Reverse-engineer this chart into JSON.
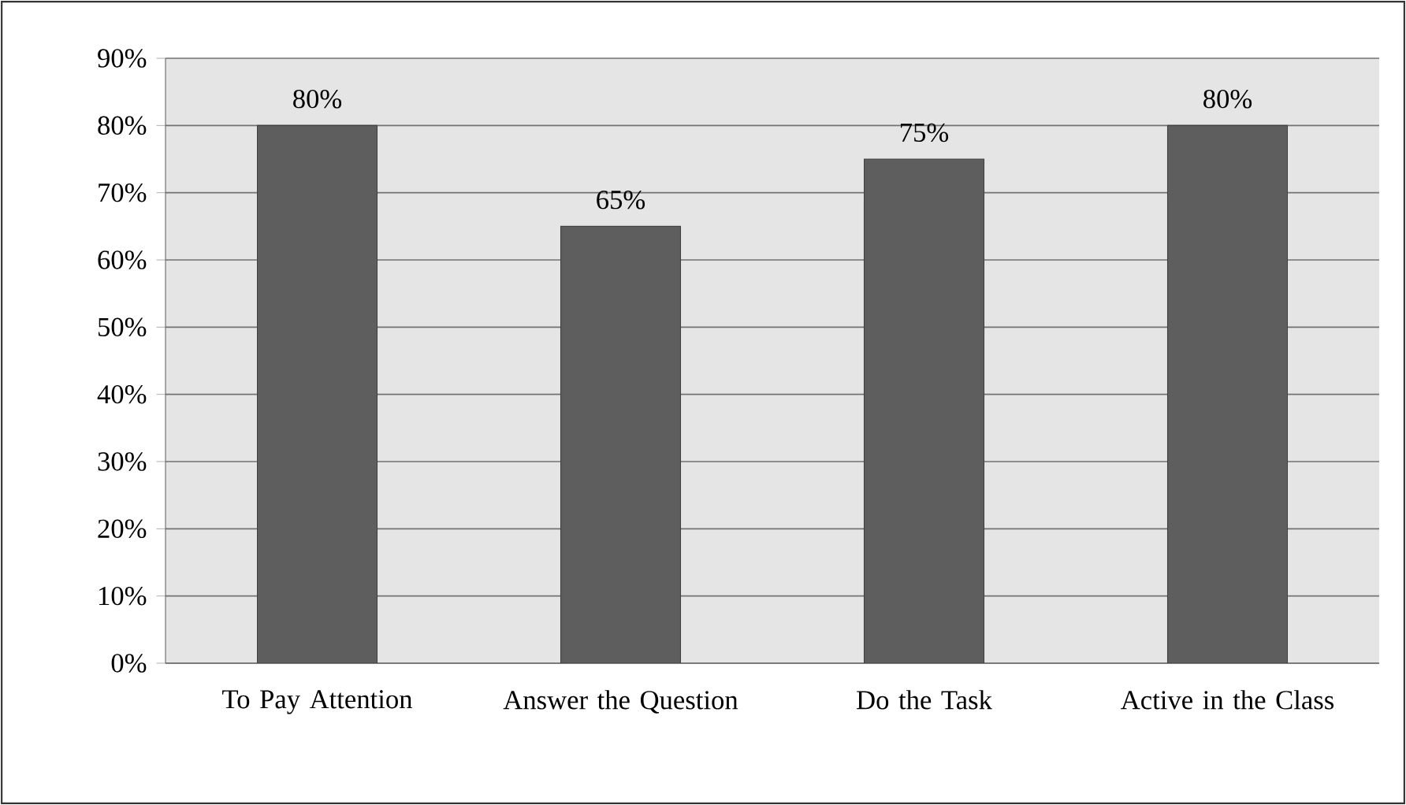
{
  "chart_data": {
    "type": "bar",
    "categories": [
      "To Pay Attention",
      "Answer the Question",
      "Do the Task",
      "Active in the Class"
    ],
    "values": [
      80,
      65,
      75,
      80
    ],
    "value_labels": [
      "80%",
      "65%",
      "75%",
      "80%"
    ],
    "color": "#5e5e5e",
    "ylim": [
      0,
      90
    ],
    "yticks": [
      {
        "value": 0,
        "label": "0%"
      },
      {
        "value": 10,
        "label": "10%"
      },
      {
        "value": 20,
        "label": "20%"
      },
      {
        "value": 30,
        "label": "30%"
      },
      {
        "value": 40,
        "label": "40%"
      },
      {
        "value": 50,
        "label": "50%"
      },
      {
        "value": 60,
        "label": "60%"
      },
      {
        "value": 70,
        "label": "70%"
      },
      {
        "value": 80,
        "label": "80%"
      },
      {
        "value": 90,
        "label": "90%"
      }
    ],
    "grid": "y"
  }
}
